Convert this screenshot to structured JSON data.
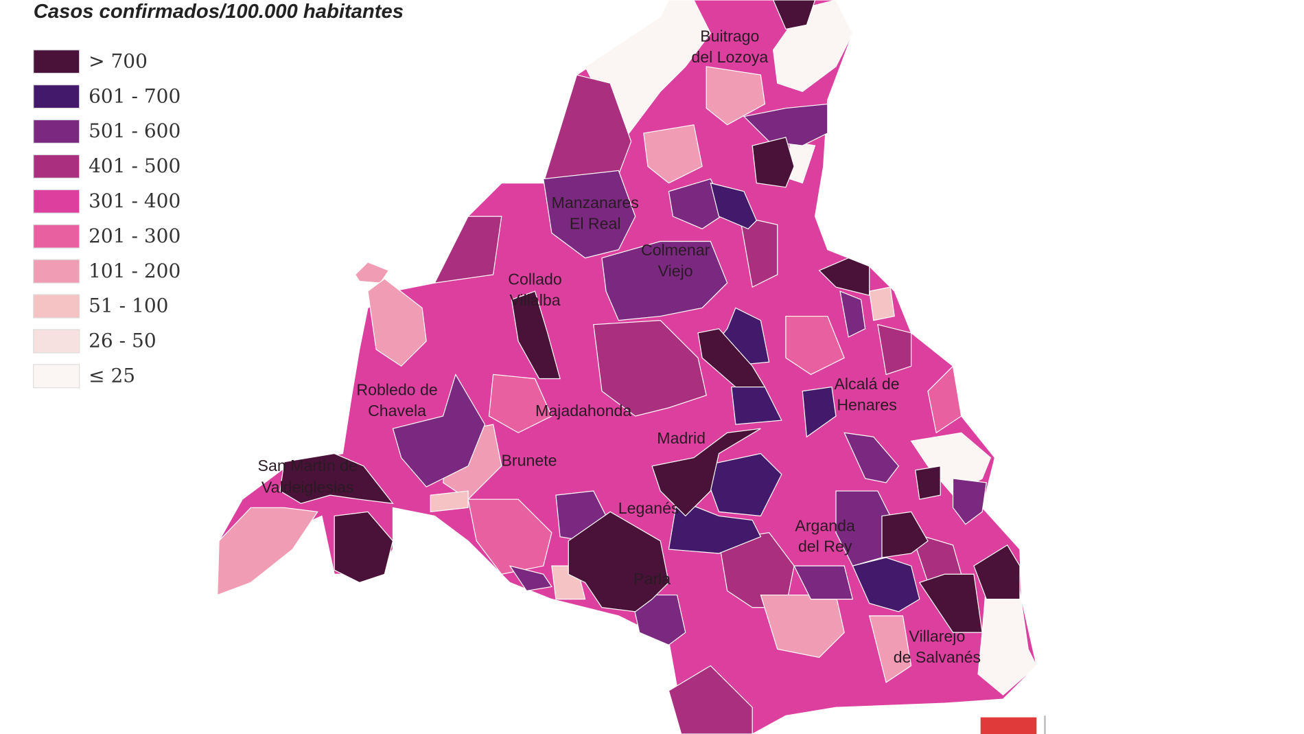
{
  "title": "Casos confirmados/100.000 habitantes",
  "legend": [
    {
      "label": "> 700",
      "color": "#4a1238"
    },
    {
      "label": "601 - 700",
      "color": "#431a6b"
    },
    {
      "label": "501 - 600",
      "color": "#7b2980"
    },
    {
      "label": "401 - 500",
      "color": "#ab2f7f"
    },
    {
      "label": "301 - 400",
      "color": "#dd3f9f"
    },
    {
      "label": "201 - 300",
      "color": "#e8609f"
    },
    {
      "label": "101 - 200",
      "color": "#f09cb5"
    },
    {
      "label": "51 - 100",
      "color": "#f5c3c3"
    },
    {
      "label": "26 - 50",
      "color": "#f7e0e0"
    },
    {
      "label": "≤ 25",
      "color": "#fbf6f3"
    }
  ],
  "places": [
    {
      "lines": [
        "Buitrago",
        "del Lozoya"
      ]
    },
    {
      "lines": [
        "Manzanares",
        "El Real"
      ]
    },
    {
      "lines": [
        "Colmenar",
        "Viejo"
      ]
    },
    {
      "lines": [
        "Collado",
        "Villalba"
      ]
    },
    {
      "lines": [
        "Robledo de",
        "Chavela"
      ]
    },
    {
      "lines": [
        "Majadahonda"
      ]
    },
    {
      "lines": [
        "Madrid"
      ]
    },
    {
      "lines": [
        "Brunete"
      ]
    },
    {
      "lines": [
        "San Martín de",
        "Valdeiglesias"
      ]
    },
    {
      "lines": [
        "Leganés"
      ]
    },
    {
      "lines": [
        "Alcalá de",
        "Henares"
      ]
    },
    {
      "lines": [
        "Arganda",
        "del Rey"
      ]
    },
    {
      "lines": [
        "Parla"
      ]
    },
    {
      "lines": [
        "Villarejo",
        "de Salvanés"
      ]
    }
  ]
}
